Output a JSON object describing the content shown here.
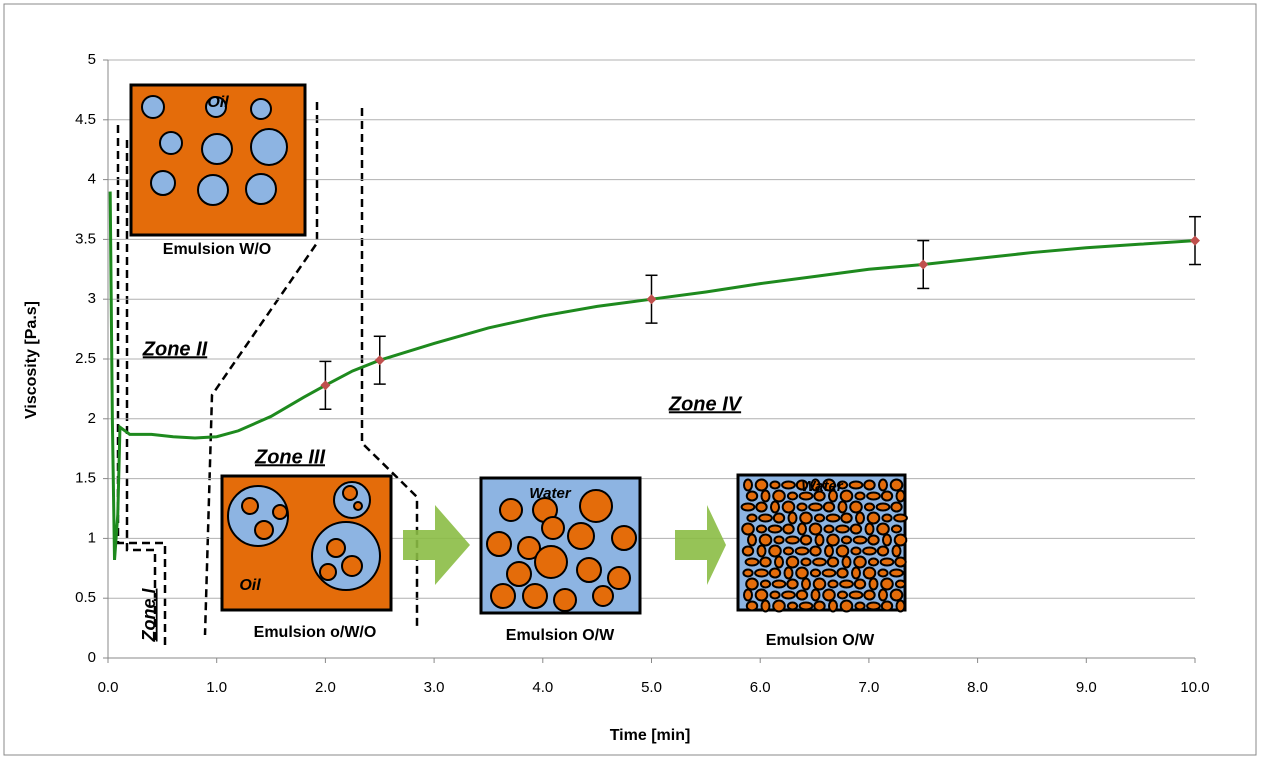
{
  "chart_data": {
    "type": "line",
    "xlabel": "Time [min]",
    "ylabel": "Viscosity [Pa.s]",
    "x": [
      0.02,
      0.04,
      0.06,
      0.09,
      0.11,
      0.2,
      0.4,
      0.6,
      0.8,
      1.0,
      1.2,
      1.5,
      1.8,
      2.0,
      2.25,
      2.5,
      3.0,
      3.5,
      4.0,
      4.5,
      5.0,
      5.5,
      6.0,
      6.5,
      7.0,
      7.5,
      8.0,
      8.5,
      9.0,
      9.5,
      10.0
    ],
    "series": [
      {
        "color": "#1e8a1e",
        "values": [
          3.9,
          2.0,
          0.82,
          1.2,
          1.93,
          1.87,
          1.87,
          1.85,
          1.84,
          1.85,
          1.9,
          2.02,
          2.18,
          2.28,
          2.4,
          2.49,
          2.63,
          2.76,
          2.86,
          2.94,
          3.0,
          3.06,
          3.13,
          3.19,
          3.25,
          3.29,
          3.34,
          3.39,
          3.43,
          3.46,
          3.49
        ]
      }
    ],
    "error_points": {
      "x": [
        2.0,
        2.5,
        5.0,
        7.5,
        10.0
      ],
      "values": [
        2.28,
        2.49,
        3.0,
        3.29,
        3.49
      ],
      "errors": [
        0.2,
        0.2,
        0.2,
        0.2,
        0.2
      ],
      "color": "#c0504d"
    },
    "xlim": [
      0,
      10
    ],
    "ylim": [
      0,
      5
    ],
    "xticks": [
      {
        "value": 0,
        "label": "0.0"
      },
      {
        "value": 1,
        "label": "1.0"
      },
      {
        "value": 2,
        "label": "2.0"
      },
      {
        "value": 3,
        "label": "3.0"
      },
      {
        "value": 4,
        "label": "4.0"
      },
      {
        "value": 5,
        "label": "5.0"
      },
      {
        "value": 6,
        "label": "6.0"
      },
      {
        "value": 7,
        "label": "7.0"
      },
      {
        "value": 8,
        "label": "8.0"
      },
      {
        "value": 9,
        "label": "9.0"
      },
      {
        "value": 10,
        "label": "10.0"
      }
    ],
    "yticks": [
      0,
      0.5,
      1,
      1.5,
      2,
      2.5,
      3,
      3.5,
      4,
      4.5,
      5
    ],
    "grid": true,
    "annotations": [
      "Zone I",
      "Zone II",
      "Zone III",
      "Zone IV",
      "Emulsion W/O",
      "Oil",
      "Emulsion o/W/O",
      "Oil",
      "Emulsion O/W",
      "Water",
      "Emulsion O/W",
      "Water"
    ]
  }
}
